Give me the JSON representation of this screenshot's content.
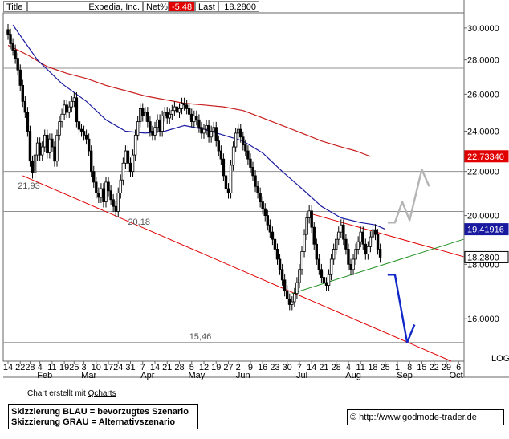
{
  "header": {
    "title_label": "Title",
    "company": "Expedia, Inc.",
    "net_label": "Net%",
    "net_value": "-5.48",
    "last_label": "Last",
    "last_value": "18.2800"
  },
  "footer": {
    "credit_prefix": "Chart erstellt mit",
    "credit_link": "Qcharts",
    "legend_lines": [
      "Skizzierung BLAU = bevorzugtes Szenario",
      "Skizzierung GRAU = Alternativszenario"
    ],
    "url": "© http://www.godmode-trader.de"
  },
  "colors": {
    "price": "#000000",
    "ma_blue": "#1a1aa0",
    "ma_red": "#c81e1e",
    "trend_red": "#e00000",
    "trend_green": "#209020",
    "scenario_blue": "#1028c8",
    "scenario_gray": "#b4b4b4",
    "gridline": "#909090",
    "last_tag_bg": "#ffffff",
    "red_tag_bg": "#e00000",
    "blue_tag_bg": "#1a1aa0"
  },
  "chart_data": {
    "type": "line",
    "scale": "log",
    "ylim": [
      14.6,
      31.0
    ],
    "y_ticks": [
      "30.0000",
      "28.0000",
      "26.0000",
      "24.0000",
      "22.0000",
      "20.0000",
      "18.0000",
      "16.0000"
    ],
    "y_tick_values": [
      30,
      28,
      26,
      24,
      22,
      20,
      18,
      16
    ],
    "axis_caption": "LOG",
    "tags": [
      {
        "label": "22.73340",
        "value": 22.7334,
        "style": "red"
      },
      {
        "label": "19.41916",
        "value": 19.41916,
        "style": "blue"
      },
      {
        "label": "18.2800",
        "value": 18.28,
        "style": "white"
      }
    ],
    "horizontal_lines": [
      27.5,
      22.0,
      20.18,
      15.2
    ],
    "annotations": [
      {
        "text": "21,93",
        "x": 4,
        "y": 21.2
      },
      {
        "text": "20,18",
        "x": 49,
        "y": 19.6
      },
      {
        "text": "15,46",
        "x": 74,
        "y": 15.3
      }
    ],
    "x_ticks": [
      {
        "label": "14",
        "x": 0
      },
      {
        "label": "22",
        "x": 5
      },
      {
        "label": "28",
        "x": 9
      },
      {
        "label": "4",
        "x": 13
      },
      {
        "label": "11",
        "x": 18
      },
      {
        "label": "19",
        "x": 23
      },
      {
        "label": "25",
        "x": 27
      },
      {
        "label": "3",
        "x": 31
      },
      {
        "label": "10",
        "x": 36
      },
      {
        "label": "17",
        "x": 41
      },
      {
        "label": "24",
        "x": 45
      },
      {
        "label": "31",
        "x": 50
      },
      {
        "label": "7",
        "x": 55
      },
      {
        "label": "14",
        "x": 60
      },
      {
        "label": "21",
        "x": 65
      },
      {
        "label": "28",
        "x": 70
      },
      {
        "label": "5",
        "x": 75
      },
      {
        "label": "12",
        "x": 80
      },
      {
        "label": "19",
        "x": 85
      },
      {
        "label": "27",
        "x": 90
      },
      {
        "label": "2",
        "x": 94
      },
      {
        "label": "9",
        "x": 99
      },
      {
        "label": "16",
        "x": 104
      },
      {
        "label": "23",
        "x": 109
      },
      {
        "label": "30",
        "x": 114
      },
      {
        "label": "7",
        "x": 119
      },
      {
        "label": "14",
        "x": 124
      },
      {
        "label": "21",
        "x": 129
      },
      {
        "label": "28",
        "x": 134
      },
      {
        "label": "4",
        "x": 139
      },
      {
        "label": "11",
        "x": 144
      },
      {
        "label": "18",
        "x": 149
      },
      {
        "label": "25",
        "x": 154
      },
      {
        "label": "1",
        "x": 159
      },
      {
        "label": "8",
        "x": 164
      },
      {
        "label": "15",
        "x": 169
      },
      {
        "label": "22",
        "x": 174
      },
      {
        "label": "29",
        "x": 179
      },
      {
        "label": "6",
        "x": 184
      }
    ],
    "month_labels": [
      {
        "label": "Feb",
        "x": 15
      },
      {
        "label": "Mar",
        "x": 33
      },
      {
        "label": "Apr",
        "x": 57
      },
      {
        "label": "May",
        "x": 77
      },
      {
        "label": "Jun",
        "x": 96
      },
      {
        "label": "Jul",
        "x": 120
      },
      {
        "label": "Aug",
        "x": 141
      },
      {
        "label": "Sep",
        "x": 162
      },
      {
        "label": "Oct",
        "x": 183
      }
    ],
    "price": {
      "name": "",
      "values": [
        29.6,
        29.0,
        28.6,
        28.1,
        27.4,
        26.5,
        25.6,
        25.0,
        24.0,
        22.5,
        21.93,
        22.8,
        23.4,
        22.8,
        23.2,
        23.8,
        22.9,
        23.6,
        23.2,
        22.5,
        23.8,
        24.5,
        24.9,
        25.4,
        25.0,
        25.3,
        25.6,
        25.8,
        24.5,
        24.1,
        24.0,
        23.8,
        23.6,
        23.0,
        22.0,
        21.5,
        21.0,
        20.8,
        21.2,
        20.6,
        21.5,
        21.1,
        20.7,
        20.4,
        20.18,
        21.0,
        21.6,
        22.4,
        23.0,
        22.4,
        22.0,
        22.8,
        23.8,
        24.5,
        25.2,
        24.8,
        25.0,
        24.5,
        24.0,
        23.8,
        24.2,
        24.6,
        24.0,
        24.8,
        25.0,
        24.7,
        24.9,
        25.1,
        25.3,
        25.0,
        25.2,
        25.5,
        25.4,
        25.2,
        24.9,
        24.5,
        24.8,
        24.6,
        24.2,
        23.9,
        24.1,
        24.3,
        23.7,
        24.0,
        24.2,
        23.5,
        23.0,
        22.6,
        21.8,
        21.2,
        21.0,
        22.3,
        23.2,
        23.9,
        24.1,
        23.7,
        23.3,
        23.0,
        22.6,
        22.2,
        21.8,
        21.3,
        21.0,
        20.6,
        20.3,
        20.0,
        19.6,
        19.3,
        19.0,
        18.6,
        18.2,
        17.8,
        17.4,
        17.0,
        16.7,
        16.5,
        16.6,
        16.9,
        17.3,
        17.8,
        18.5,
        19.2,
        19.9,
        20.2,
        19.5,
        18.8,
        18.2,
        17.8,
        17.5,
        17.3,
        17.2,
        17.6,
        18.2,
        18.6,
        19.0,
        19.3,
        19.6,
        19.0,
        18.6,
        18.0,
        17.8,
        18.2,
        18.6,
        18.9,
        19.3,
        18.8,
        18.4,
        18.7,
        19.1,
        19.4,
        19.2,
        18.6,
        18.28
      ],
      "start_x": 0
    },
    "ma_blue": {
      "name": "",
      "points": [
        [
          2,
          30.2
        ],
        [
          12,
          28.0
        ],
        [
          22,
          26.6
        ],
        [
          32,
          25.6
        ],
        [
          40,
          24.6
        ],
        [
          48,
          24.0
        ],
        [
          56,
          23.9
        ],
        [
          64,
          24.0
        ],
        [
          72,
          24.3
        ],
        [
          80,
          24.1
        ],
        [
          88,
          23.8
        ],
        [
          96,
          23.5
        ],
        [
          104,
          22.9
        ],
        [
          112,
          22.0
        ],
        [
          120,
          21.2
        ],
        [
          128,
          20.4
        ],
        [
          136,
          19.9
        ],
        [
          144,
          19.7
        ],
        [
          150,
          19.6
        ],
        [
          154,
          19.42
        ]
      ]
    },
    "ma_red": {
      "name": "",
      "points": [
        [
          0,
          28.9
        ],
        [
          8,
          28.3
        ],
        [
          16,
          27.6
        ],
        [
          24,
          27.2
        ],
        [
          32,
          26.9
        ],
        [
          40,
          26.5
        ],
        [
          48,
          26.2
        ],
        [
          56,
          25.9
        ],
        [
          64,
          25.7
        ],
        [
          72,
          25.5
        ],
        [
          80,
          25.4
        ],
        [
          88,
          25.3
        ],
        [
          96,
          25.1
        ],
        [
          104,
          24.7
        ],
        [
          112,
          24.3
        ],
        [
          120,
          23.9
        ],
        [
          128,
          23.5
        ],
        [
          136,
          23.2
        ],
        [
          142,
          23.0
        ],
        [
          148,
          22.73
        ]
      ]
    },
    "trend_lines": [
      {
        "style": "trend_red",
        "points": [
          [
            6,
            21.8
          ],
          [
            181,
            14.6
          ]
        ]
      },
      {
        "style": "trend_red",
        "points": [
          [
            123,
            20.1
          ],
          [
            186,
            18.3
          ]
        ]
      },
      {
        "style": "trend_green",
        "points": [
          [
            116,
            16.9
          ],
          [
            186,
            19.0
          ]
        ]
      }
    ],
    "scenarios": [
      {
        "style": "scenario_blue",
        "points": [
          [
            155,
            17.6
          ],
          [
            158,
            17.6
          ],
          [
            163,
            15.2
          ],
          [
            166,
            15.8
          ]
        ]
      },
      {
        "style": "scenario_gray",
        "points": [
          [
            155,
            19.7
          ],
          [
            158,
            19.7
          ],
          [
            161,
            20.6
          ],
          [
            164,
            19.8
          ],
          [
            169,
            22.1
          ],
          [
            172,
            21.3
          ]
        ]
      }
    ]
  }
}
